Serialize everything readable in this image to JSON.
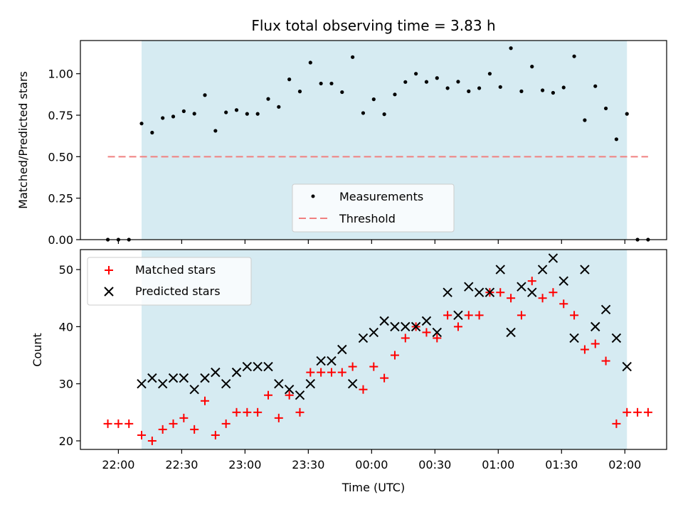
{
  "chart_data": [
    {
      "type": "scatter",
      "title": "Flux total observing time = 3.83 h",
      "ylabel": "Matched/Predicted stars",
      "xlabel": "",
      "x_axis": "time (minutes after 22:00 UTC)",
      "xlim": [
        -0.3,
        4.33
      ],
      "ylim": [
        0,
        1.2
      ],
      "yticks": [
        0,
        0.25,
        0.5,
        0.75,
        1.0
      ],
      "ytick_labels": [
        "0.00",
        "0.25",
        "0.50",
        "0.75",
        "1.00"
      ],
      "observing_window": [
        "22:11",
        "02:01"
      ],
      "legend": {
        "placement": "lower-center",
        "entries": [
          "Measurements",
          "Threshold"
        ]
      },
      "series": [
        {
          "name": "Measurements",
          "marker": "dot",
          "color": "#000000",
          "x": [
            "21:55",
            "22:00",
            "22:05",
            "22:11",
            "22:16",
            "22:21",
            "22:26",
            "22:31",
            "22:36",
            "22:41",
            "22:46",
            "22:51",
            "22:56",
            "23:01",
            "23:06",
            "23:11",
            "23:16",
            "23:21",
            "23:26",
            "23:31",
            "23:36",
            "23:41",
            "23:46",
            "23:51",
            "23:56",
            "00:01",
            "00:06",
            "00:11",
            "00:16",
            "00:21",
            "00:26",
            "00:31",
            "00:36",
            "00:41",
            "00:46",
            "00:51",
            "00:56",
            "01:01",
            "01:06",
            "01:11",
            "01:16",
            "01:21",
            "01:26",
            "01:31",
            "01:36",
            "01:41",
            "01:46",
            "01:51",
            "01:56",
            "02:01",
            "02:06",
            "02:11"
          ],
          "y": [
            0.0,
            0.0,
            0.0,
            0.7,
            0.645,
            0.733,
            0.742,
            0.774,
            0.759,
            0.871,
            0.656,
            0.767,
            0.781,
            0.758,
            0.758,
            0.848,
            0.8,
            0.966,
            0.893,
            1.067,
            0.941,
            0.941,
            0.889,
            1.1,
            0.763,
            0.846,
            0.756,
            0.875,
            0.95,
            1.0,
            0.951,
            0.974,
            0.913,
            0.952,
            0.894,
            0.913,
            1.0,
            0.92,
            1.154,
            0.894,
            1.043,
            0.9,
            0.885,
            0.917,
            1.105,
            0.72,
            0.925,
            0.791,
            0.605,
            0.758,
            0.0,
            0.0
          ]
        },
        {
          "name": "Threshold",
          "style": "dashed",
          "color": "#f08080",
          "x": [
            "21:55",
            "02:11"
          ],
          "y": [
            0.5,
            0.5
          ]
        }
      ]
    },
    {
      "type": "scatter",
      "title": "",
      "ylabel": "Count",
      "xlabel": "Time (UTC)",
      "xlim": [
        -0.3,
        4.33
      ],
      "ylim": [
        18.5,
        53.5
      ],
      "yticks": [
        20,
        30,
        40,
        50
      ],
      "ytick_labels": [
        "20",
        "30",
        "40",
        "50"
      ],
      "xtick_labels": [
        "22:00",
        "22:30",
        "23:00",
        "23:30",
        "00:00",
        "00:30",
        "01:00",
        "01:30",
        "02:00"
      ],
      "observing_window": [
        "22:11",
        "02:01"
      ],
      "legend": {
        "placement": "top-left",
        "entries": [
          "Matched stars",
          "Predicted stars"
        ]
      },
      "series": [
        {
          "name": "Matched stars",
          "marker": "plus",
          "color": "#ff0000",
          "x": [
            "21:55",
            "22:00",
            "22:05",
            "22:11",
            "22:16",
            "22:21",
            "22:26",
            "22:31",
            "22:36",
            "22:41",
            "22:46",
            "22:51",
            "22:56",
            "23:01",
            "23:06",
            "23:11",
            "23:16",
            "23:21",
            "23:26",
            "23:31",
            "23:36",
            "23:41",
            "23:46",
            "23:51",
            "23:56",
            "00:01",
            "00:06",
            "00:11",
            "00:16",
            "00:21",
            "00:26",
            "00:31",
            "00:36",
            "00:41",
            "00:46",
            "00:51",
            "00:56",
            "01:01",
            "01:06",
            "01:11",
            "01:16",
            "01:21",
            "01:26",
            "01:31",
            "01:36",
            "01:41",
            "01:46",
            "01:51",
            "01:56",
            "02:01",
            "02:06",
            "02:11"
          ],
          "y": [
            23,
            23,
            23,
            21,
            20,
            22,
            23,
            24,
            22,
            27,
            21,
            23,
            25,
            25,
            25,
            28,
            24,
            28,
            25,
            32,
            32,
            32,
            32,
            33,
            29,
            33,
            31,
            35,
            38,
            40,
            39,
            38,
            42,
            40,
            42,
            42,
            46,
            46,
            45,
            42,
            48,
            45,
            46,
            44,
            42,
            36,
            37,
            34,
            23,
            25,
            25,
            25
          ]
        },
        {
          "name": "Predicted stars",
          "marker": "x",
          "color": "#000000",
          "x": [
            "22:11",
            "22:16",
            "22:21",
            "22:26",
            "22:31",
            "22:36",
            "22:41",
            "22:46",
            "22:51",
            "22:56",
            "23:01",
            "23:06",
            "23:11",
            "23:16",
            "23:21",
            "23:26",
            "23:31",
            "23:36",
            "23:41",
            "23:46",
            "23:51",
            "23:56",
            "00:01",
            "00:06",
            "00:11",
            "00:16",
            "00:21",
            "00:26",
            "00:31",
            "00:36",
            "00:41",
            "00:46",
            "00:51",
            "00:56",
            "01:01",
            "01:06",
            "01:11",
            "01:16",
            "01:21",
            "01:26",
            "01:31",
            "01:36",
            "01:41",
            "01:46",
            "01:51",
            "01:56",
            "02:01"
          ],
          "y": [
            30,
            31,
            30,
            31,
            31,
            29,
            31,
            32,
            30,
            32,
            33,
            33,
            33,
            30,
            29,
            28,
            30,
            34,
            34,
            36,
            30,
            38,
            39,
            41,
            40,
            40,
            40,
            41,
            39,
            46,
            42,
            47,
            46,
            46,
            50,
            39,
            47,
            46,
            50,
            52,
            48,
            38,
            50,
            40,
            43,
            38,
            33
          ]
        }
      ]
    }
  ],
  "colors": {
    "observing_window": "#add8e6",
    "threshold": "#f08080",
    "matched": "#ff0000",
    "predicted": "#000000",
    "measurements": "#000000"
  }
}
